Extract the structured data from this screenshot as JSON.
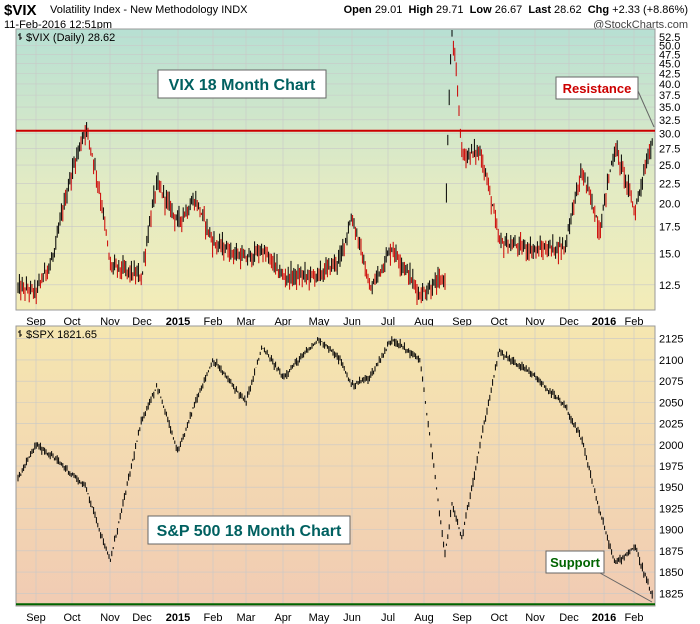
{
  "header": {
    "symbol": "$VIX",
    "name": "Volatility Index - New Methodology INDX",
    "datetime": "11-Feb-2016 12:51pm",
    "open_label": "Open",
    "open": "29.01",
    "high_label": "High",
    "high": "29.71",
    "low_label": "Low",
    "low": "26.67",
    "last_label": "Last",
    "last": "28.62",
    "chg_label": "Chg",
    "chg": "+2.33 (+8.86%)",
    "brand": "@StockCharts.com"
  },
  "colors": {
    "up_bar": "#000000",
    "down_bar": "#cc0000",
    "resistance_line": "#cc0000",
    "support_line": "#006400",
    "annotation_box_border": "#666666",
    "resistance_text": "#cc0000",
    "support_text": "#006400",
    "title_text": "#006060"
  },
  "chart_data": [
    {
      "type": "line",
      "legend": "$VIX (Daily) 28.62",
      "annotation_title": "VIX 18 Month Chart",
      "level_label": "Resistance",
      "level_value": 30.5,
      "scale": "log",
      "ylim": [
        10.8,
        55
      ],
      "y_ticks": [
        "52.5",
        "50.0",
        "47.5",
        "45.0",
        "42.5",
        "40.0",
        "37.5",
        "35.0",
        "32.5",
        "30.0",
        "27.5",
        "25.0",
        "22.5",
        "20.0",
        "17.5",
        "15.0",
        "12.5"
      ],
      "x_ticks": [
        "Sep",
        "Oct",
        "Nov",
        "Dec",
        "2015",
        "Feb",
        "Mar",
        "Apr",
        "May",
        "Jun",
        "Jul",
        "Aug",
        "Sep",
        "Oct",
        "Nov",
        "Dec",
        "2016",
        "Feb"
      ],
      "x": [
        "Aug 2014",
        "Sep 2014",
        "Oct 2014",
        "Oct 2014",
        "Nov 2014",
        "Dec 2014",
        "Dec 2014",
        "Jan 2015",
        "Jan 2015",
        "Feb 2015",
        "Mar 2015",
        "Mar 2015",
        "Apr 2015",
        "May 2015",
        "Jun 2015",
        "Jun 2015",
        "Jul 2015",
        "Jul 2015",
        "Aug 2015",
        "Aug 2015",
        "Aug 2015",
        "Sep 2015",
        "Sep 2015",
        "Oct 2015",
        "Nov 2015",
        "Nov 2015",
        "Dec 2015",
        "Dec 2015",
        "Jan 2016",
        "Jan 2016",
        "Feb 2016"
      ],
      "values": [
        12.3,
        12.0,
        14.8,
        31.1,
        14.0,
        13.1,
        22.4,
        18.0,
        20.5,
        16.0,
        14.5,
        15.3,
        13.1,
        13.2,
        14.5,
        18.5,
        12.0,
        15.5,
        11.8,
        13.0,
        53.3,
        26.5,
        27.0,
        16.0,
        15.3,
        15.6,
        24.0,
        17.0,
        27.6,
        19.0,
        28.6
      ]
    },
    {
      "type": "line",
      "legend": "$SPX 1821.65",
      "annotation_title": "S&P 500 18 Month Chart",
      "level_label": "Support",
      "level_value": 1812,
      "ylim": [
        1810,
        2140
      ],
      "y_ticks": [
        "2125",
        "2100",
        "2075",
        "2050",
        "2025",
        "2000",
        "1975",
        "1950",
        "1925",
        "1900",
        "1875",
        "1850",
        "1825"
      ],
      "x_ticks": [
        "Sep",
        "Oct",
        "Nov",
        "Dec",
        "2015",
        "Feb",
        "Mar",
        "Apr",
        "May",
        "Jun",
        "Jul",
        "Aug",
        "Sep",
        "Oct",
        "Nov",
        "Dec",
        "2016",
        "Feb"
      ],
      "x": [
        "Aug 2014",
        "Sep 2014",
        "Sep 2014",
        "Oct 2014",
        "Oct 2014",
        "Nov 2014",
        "Dec 2014",
        "Dec 2014",
        "Jan 2015",
        "Feb 2015",
        "Mar 2015",
        "Mar 2015",
        "Apr 2015",
        "May 2015",
        "Jun 2015",
        "Jun 2015",
        "Jul 2015",
        "Jul 2015",
        "Aug 2015",
        "Aug 2015",
        "Sep 2015",
        "Sep 2015",
        "Oct 2015",
        "Nov 2015",
        "Nov 2015",
        "Dec 2015",
        "Dec 2015",
        "Jan 2016",
        "Jan 2016",
        "Feb 2016",
        "Feb 2016"
      ],
      "values": [
        1960,
        2000,
        1985,
        1950,
        1862,
        2030,
        2070,
        1990,
        2050,
        2100,
        2050,
        2115,
        2080,
        2125,
        2100,
        2070,
        2080,
        2125,
        2100,
        1870,
        1930,
        1890,
        2000,
        2110,
        2080,
        2045,
        2005,
        1920,
        1860,
        1880,
        1821.65
      ]
    }
  ]
}
